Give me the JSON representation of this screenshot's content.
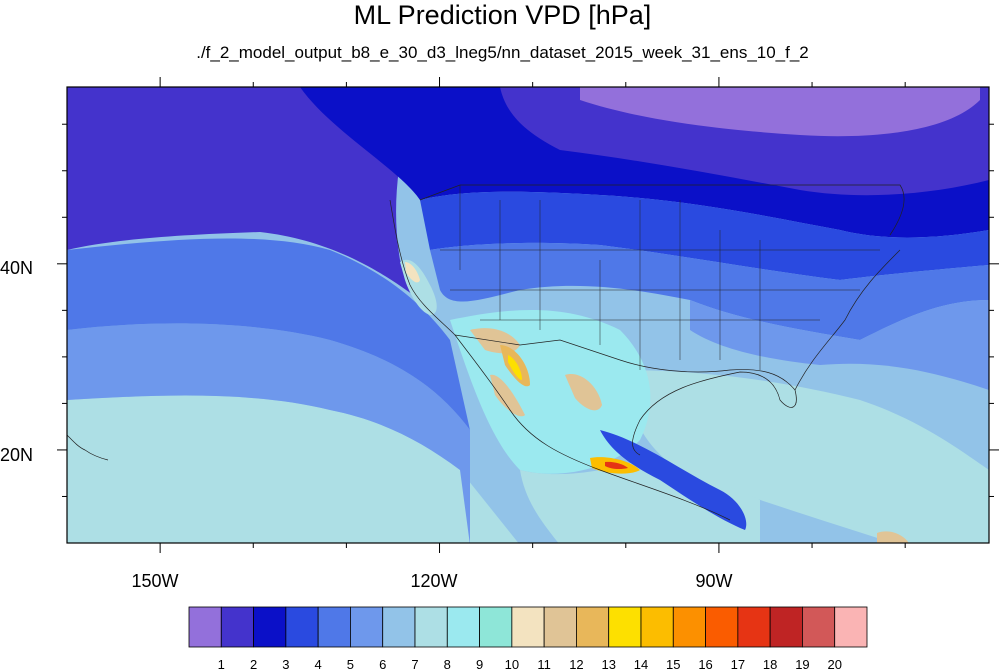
{
  "title": "ML Prediction VPD [hPa]",
  "subtitle": "./f_2_model_output_b8_e_30_d3_lneg5/nn_dataset_2015_week_31_ens_10_f_2",
  "map": {
    "projection": "cylindrical-equidistant",
    "lon_range": [
      -160,
      -61
    ],
    "lat_range": [
      10,
      59
    ],
    "lon_ticks": [
      {
        "value": -150,
        "label": "150W"
      },
      {
        "value": -120,
        "label": "120W"
      },
      {
        "value": -90,
        "label": "90W"
      }
    ],
    "lat_ticks": [
      {
        "value": 40,
        "label": "40N"
      },
      {
        "value": 20,
        "label": "20N"
      }
    ]
  },
  "colorbar": {
    "colors": [
      "#9370db",
      "#4433cc",
      "#0b10c8",
      "#2a4ae0",
      "#4f78e8",
      "#6e98ec",
      "#92c3e8",
      "#addfe5",
      "#9be9ef",
      "#8ee6d8",
      "#f3e3c0",
      "#e0c496",
      "#e8b75a",
      "#fde000",
      "#fcbd00",
      "#fc9000",
      "#fa5c00",
      "#e63414",
      "#bf2424",
      "#d25858",
      "#fab4b4"
    ],
    "labels": [
      "1",
      "2",
      "3",
      "4",
      "5",
      "6",
      "7",
      "8",
      "9",
      "10",
      "11",
      "12",
      "13",
      "14",
      "15",
      "16",
      "17",
      "18",
      "19",
      "20"
    ]
  }
}
